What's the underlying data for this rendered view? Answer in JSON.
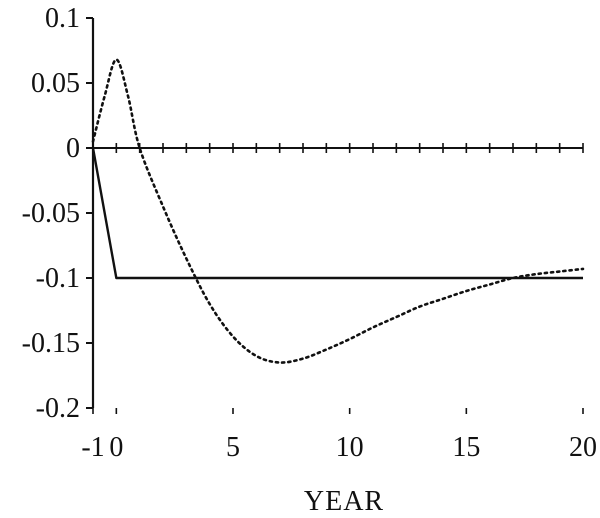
{
  "chart_data": {
    "type": "line",
    "title": "",
    "xlabel": "YEAR",
    "ylabel": "",
    "xlim": [
      -1,
      20
    ],
    "ylim": [
      -0.2,
      0.1
    ],
    "x_ticks": [
      "-1",
      "0",
      "5",
      "10",
      "15",
      "20"
    ],
    "x_tick_values": [
      -1,
      0,
      5,
      10,
      15,
      20
    ],
    "y_ticks": [
      "0.1",
      "0.05",
      "0",
      "-0.05",
      "-0.1",
      "-0.15",
      "-0.2"
    ],
    "y_tick_values": [
      0.1,
      0.05,
      0,
      -0.05,
      -0.1,
      -0.15,
      -0.2
    ],
    "grid": false,
    "legend": "none",
    "series": [
      {
        "style": "solid",
        "x": [
          -1,
          0,
          20
        ],
        "y": [
          0,
          -0.1,
          -0.1
        ]
      },
      {
        "style": "dotted",
        "x": [
          -1,
          -0.5,
          0,
          0.5,
          1,
          2,
          3,
          4,
          5,
          6,
          7,
          8,
          9,
          10,
          11,
          12,
          13,
          14,
          15,
          16,
          17,
          18,
          19,
          20
        ],
        "y": [
          0.005,
          0.04,
          0.068,
          0.04,
          0.0,
          -0.045,
          -0.085,
          -0.12,
          -0.145,
          -0.16,
          -0.165,
          -0.162,
          -0.155,
          -0.147,
          -0.138,
          -0.13,
          -0.122,
          -0.116,
          -0.11,
          -0.105,
          -0.1,
          -0.097,
          -0.095,
          -0.093
        ]
      },
      {
        "style": "tick-marked",
        "x": [
          -1,
          20
        ],
        "y": [
          0,
          0
        ]
      }
    ]
  }
}
